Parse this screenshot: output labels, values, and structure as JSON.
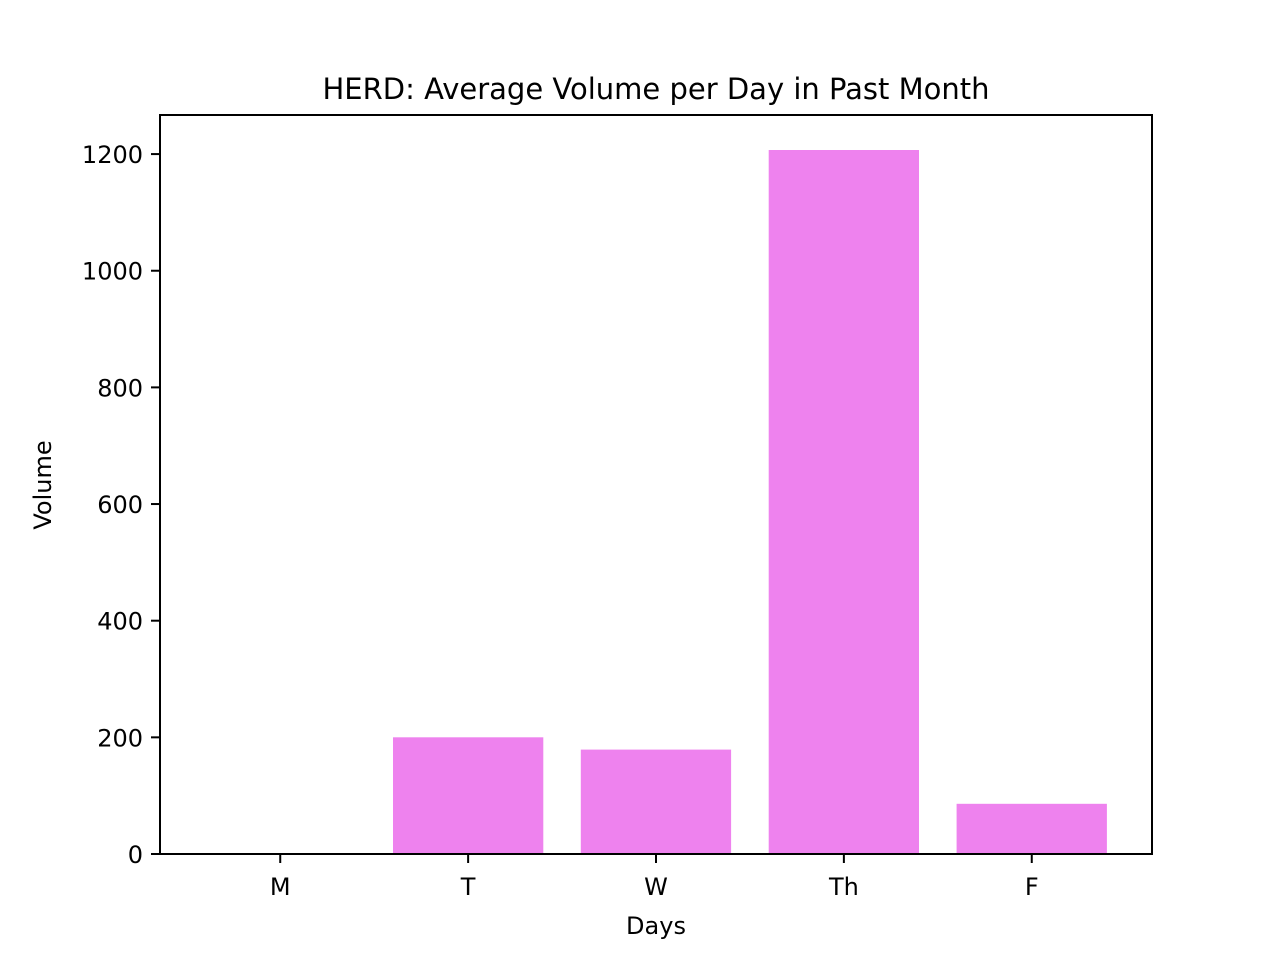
{
  "chart_data": {
    "type": "bar",
    "title": "HERD: Average Volume per Day in Past Month",
    "xlabel": "Days",
    "ylabel": "Volume",
    "categories": [
      "M",
      "T",
      "W",
      "Th",
      "F"
    ],
    "values": [
      0,
      200,
      179,
      1207,
      86
    ],
    "ylim": [
      0,
      1267
    ],
    "yticks": [
      0,
      200,
      400,
      600,
      800,
      1000,
      1200
    ],
    "bar_color": "#ee82ee",
    "grid": false,
    "legend": "none"
  }
}
